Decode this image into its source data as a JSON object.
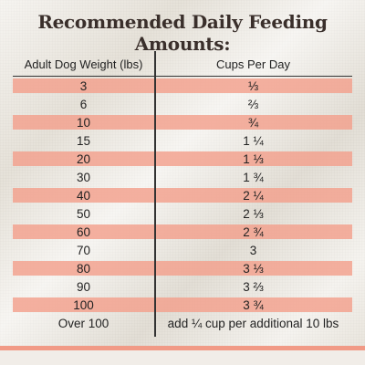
{
  "title": "Recommended Daily Feeding Amounts:",
  "table": {
    "headers": [
      "Adult Dog Weight (lbs)",
      "Cups Per Day"
    ],
    "rows": [
      {
        "weight": "3",
        "cups": "⅓"
      },
      {
        "weight": "6",
        "cups": "⅔"
      },
      {
        "weight": "10",
        "cups": "¾"
      },
      {
        "weight": "15",
        "cups": "1 ¼"
      },
      {
        "weight": "20",
        "cups": "1 ⅓"
      },
      {
        "weight": "30",
        "cups": "1 ¾"
      },
      {
        "weight": "40",
        "cups": "2 ¼"
      },
      {
        "weight": "50",
        "cups": "2 ⅓"
      },
      {
        "weight": "60",
        "cups": "2 ¾"
      },
      {
        "weight": "70",
        "cups": "3"
      },
      {
        "weight": "80",
        "cups": "3 ⅓"
      },
      {
        "weight": "90",
        "cups": "3 ⅔"
      },
      {
        "weight": "100",
        "cups": "3 ¾"
      },
      {
        "weight": "Over 100",
        "cups": "add ¼ cup per additional 10 lbs"
      }
    ]
  },
  "colors": {
    "row_highlight": "#f3a08c",
    "footer_accent": "#f19a86",
    "title_text": "#3a2f2b"
  }
}
